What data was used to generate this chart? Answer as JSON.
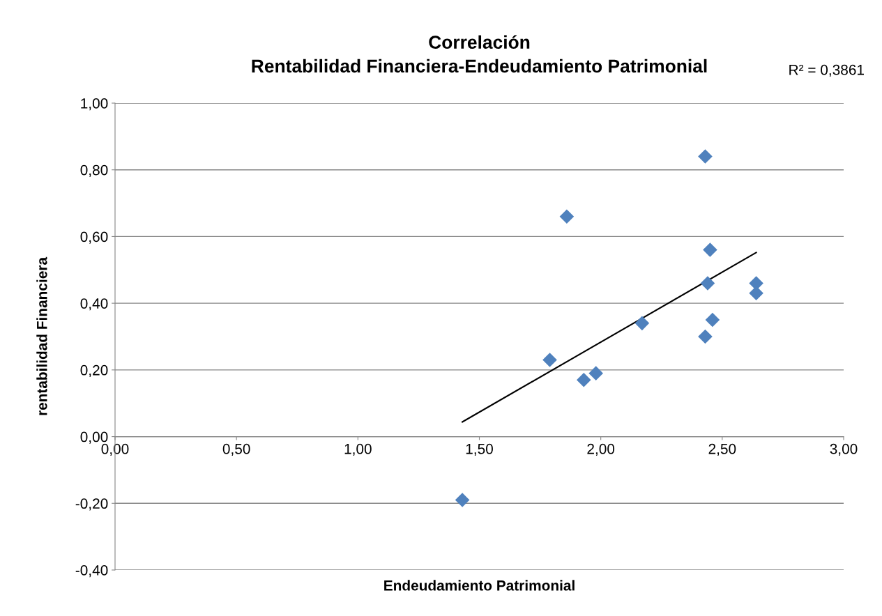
{
  "chart_data": {
    "type": "scatter",
    "title": "Correlación\nRentabilidad Financiera-Endeudamiento Patrimonial",
    "xlabel": "Endeudamiento Patrimonial",
    "ylabel": "rentabilidad Financiera",
    "annotations": [
      "R² = 0,3861"
    ],
    "series": [
      {
        "color": "#4f81bd",
        "marker": "diamond",
        "x": [
          1.43,
          1.79,
          1.86,
          1.93,
          1.98,
          2.17,
          2.43,
          2.43,
          2.44,
          2.45,
          2.46,
          2.64,
          2.64
        ],
        "values": [
          -0.19,
          0.23,
          0.66,
          0.17,
          0.19,
          0.34,
          0.3,
          0.84,
          0.46,
          0.56,
          0.35,
          0.46,
          0.43
        ]
      },
      {
        "type": "line",
        "color": "#000000",
        "marker": "none",
        "line_style": "solid",
        "x": [
          1.43,
          2.64
        ],
        "values": [
          0.044,
          0.552
        ]
      }
    ],
    "xlim": [
      0,
      3
    ],
    "ylim": [
      -0.4,
      1
    ],
    "xticks": [
      {
        "value": 0,
        "label": "0,00"
      },
      {
        "value": 0.5,
        "label": "0,50"
      },
      {
        "value": 1,
        "label": "1,00"
      },
      {
        "value": 1.5,
        "label": "1,50"
      },
      {
        "value": 2,
        "label": "2,00"
      },
      {
        "value": 2.5,
        "label": "2,50"
      },
      {
        "value": 3,
        "label": "3,00"
      }
    ],
    "yticks": [
      {
        "value": -0.4,
        "label": "-0,40"
      },
      {
        "value": -0.2,
        "label": "-0,20"
      },
      {
        "value": 0,
        "label": "0,00"
      },
      {
        "value": 0.2,
        "label": "0,20"
      },
      {
        "value": 0.4,
        "label": "0,40"
      },
      {
        "value": 0.6,
        "label": "0,60"
      },
      {
        "value": 0.8,
        "label": "0,80"
      },
      {
        "value": 1,
        "label": "1,00"
      }
    ],
    "grid": "y",
    "legend": false
  }
}
